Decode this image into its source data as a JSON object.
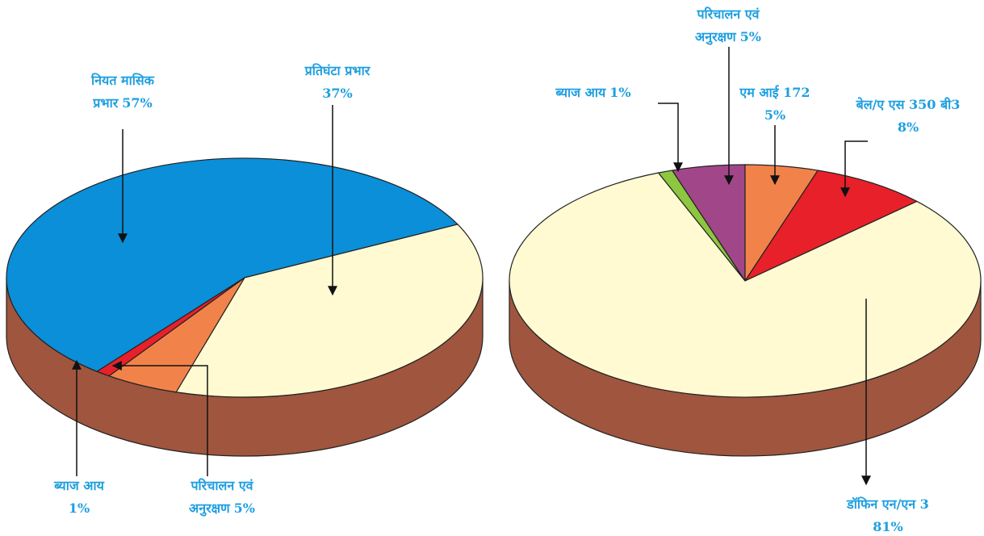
{
  "chart_data": [
    {
      "type": "pie",
      "categories": [
        [
          "नियत मासिक",
          "प्रभार"
        ],
        [
          "प्रतिघंटा प्रभार"
        ],
        [
          "परिचालन एवं",
          "अनुरक्षण"
        ],
        [
          "ब्याज आय"
        ]
      ],
      "values": [
        57,
        37,
        5,
        1
      ],
      "value_labels": [
        "57%",
        "37%",
        "5%",
        "1%"
      ],
      "colors": [
        "#0b8fd8",
        "#fffad2",
        "#f1834a",
        "#e8202a"
      ]
    },
    {
      "type": "pie",
      "categories": [
        [
          "ब्याज आय"
        ],
        [
          "परिचालन एवं",
          "अनुरक्षण"
        ],
        [
          "एम आई 172"
        ],
        [
          "बेल/ए एस 350 बी3"
        ],
        [
          "डॉफिन एन/एन 3"
        ]
      ],
      "values": [
        1,
        5,
        5,
        8,
        81
      ],
      "value_labels": [
        "1%",
        "5%",
        "5%",
        "8%",
        "81%"
      ],
      "colors": [
        "#8dc63f",
        "#a2468a",
        "#f1834a",
        "#e8202a",
        "#fffad2"
      ]
    }
  ]
}
